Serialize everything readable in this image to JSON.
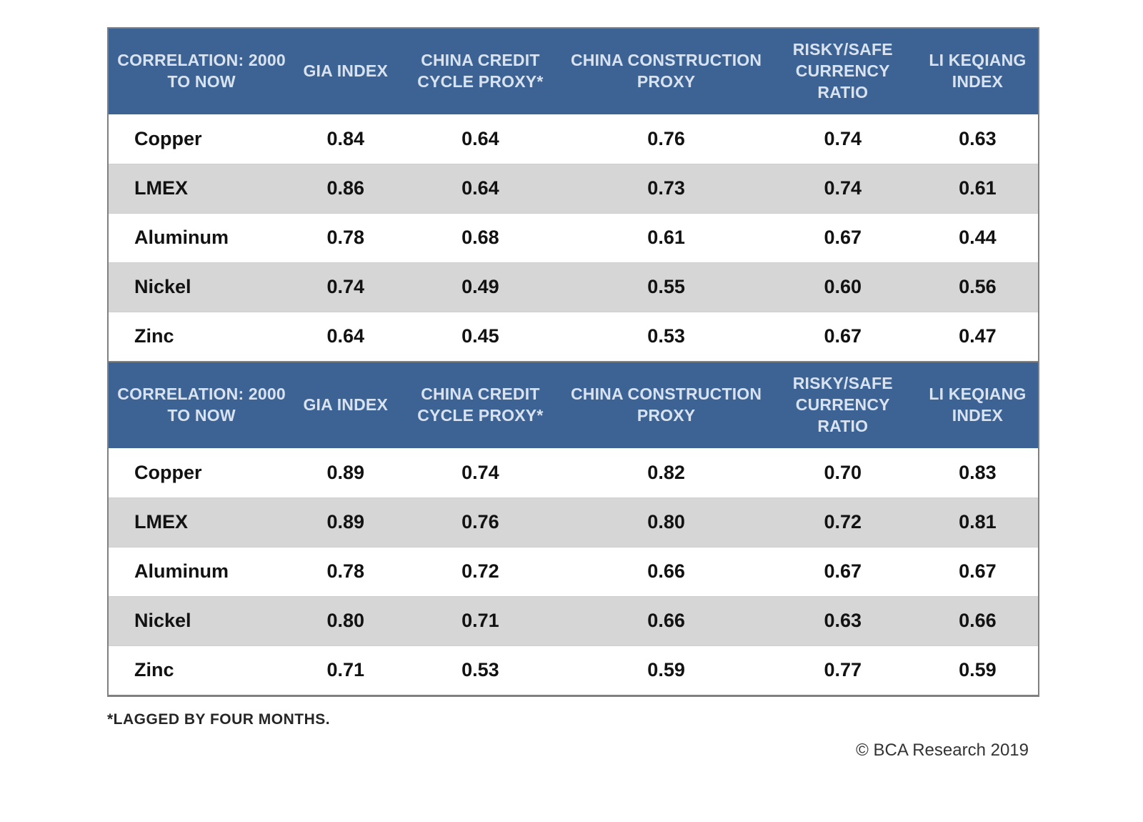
{
  "colors": {
    "header_bg": "#3C6394",
    "header_text": "#D9E3F0",
    "row_alt_bg": "#D6D6D6",
    "row_bg": "#FFFFFF",
    "border": "#808080",
    "body_text": "#121212"
  },
  "footnote": "*LAGGED BY FOUR MONTHS.",
  "copyright": "© BCA Research 2019",
  "chart_data": [
    {
      "type": "table",
      "corner_label": "CORRELATION: 2000 TO NOW",
      "columns": [
        "GIA INDEX",
        "CHINA CREDIT CYCLE PROXY*",
        "CHINA CONSTRUCTION PROXY",
        "RISKY/SAFE CURRENCY RATIO",
        "LI KEQIANG INDEX"
      ],
      "rows": [
        {
          "label": "Copper",
          "values": [
            "0.84",
            "0.64",
            "0.76",
            "0.74",
            "0.63"
          ]
        },
        {
          "label": "LMEX",
          "values": [
            "0.86",
            "0.64",
            "0.73",
            "0.74",
            "0.61"
          ]
        },
        {
          "label": "Aluminum",
          "values": [
            "0.78",
            "0.68",
            "0.61",
            "0.67",
            "0.44"
          ]
        },
        {
          "label": "Nickel",
          "values": [
            "0.74",
            "0.49",
            "0.55",
            "0.60",
            "0.56"
          ]
        },
        {
          "label": "Zinc",
          "values": [
            "0.64",
            "0.45",
            "0.53",
            "0.67",
            "0.47"
          ]
        }
      ]
    },
    {
      "type": "table",
      "corner_label": "CORRELATION: 2000 TO NOW",
      "columns": [
        "GIA INDEX",
        "CHINA CREDIT CYCLE PROXY*",
        "CHINA CONSTRUCTION PROXY",
        "RISKY/SAFE CURRENCY RATIO",
        "LI KEQIANG INDEX"
      ],
      "rows": [
        {
          "label": "Copper",
          "values": [
            "0.89",
            "0.74",
            "0.82",
            "0.70",
            "0.83"
          ]
        },
        {
          "label": "LMEX",
          "values": [
            "0.89",
            "0.76",
            "0.80",
            "0.72",
            "0.81"
          ]
        },
        {
          "label": "Aluminum",
          "values": [
            "0.78",
            "0.72",
            "0.66",
            "0.67",
            "0.67"
          ]
        },
        {
          "label": "Nickel",
          "values": [
            "0.80",
            "0.71",
            "0.66",
            "0.63",
            "0.66"
          ]
        },
        {
          "label": "Zinc",
          "values": [
            "0.71",
            "0.53",
            "0.59",
            "0.77",
            "0.59"
          ]
        }
      ]
    }
  ]
}
